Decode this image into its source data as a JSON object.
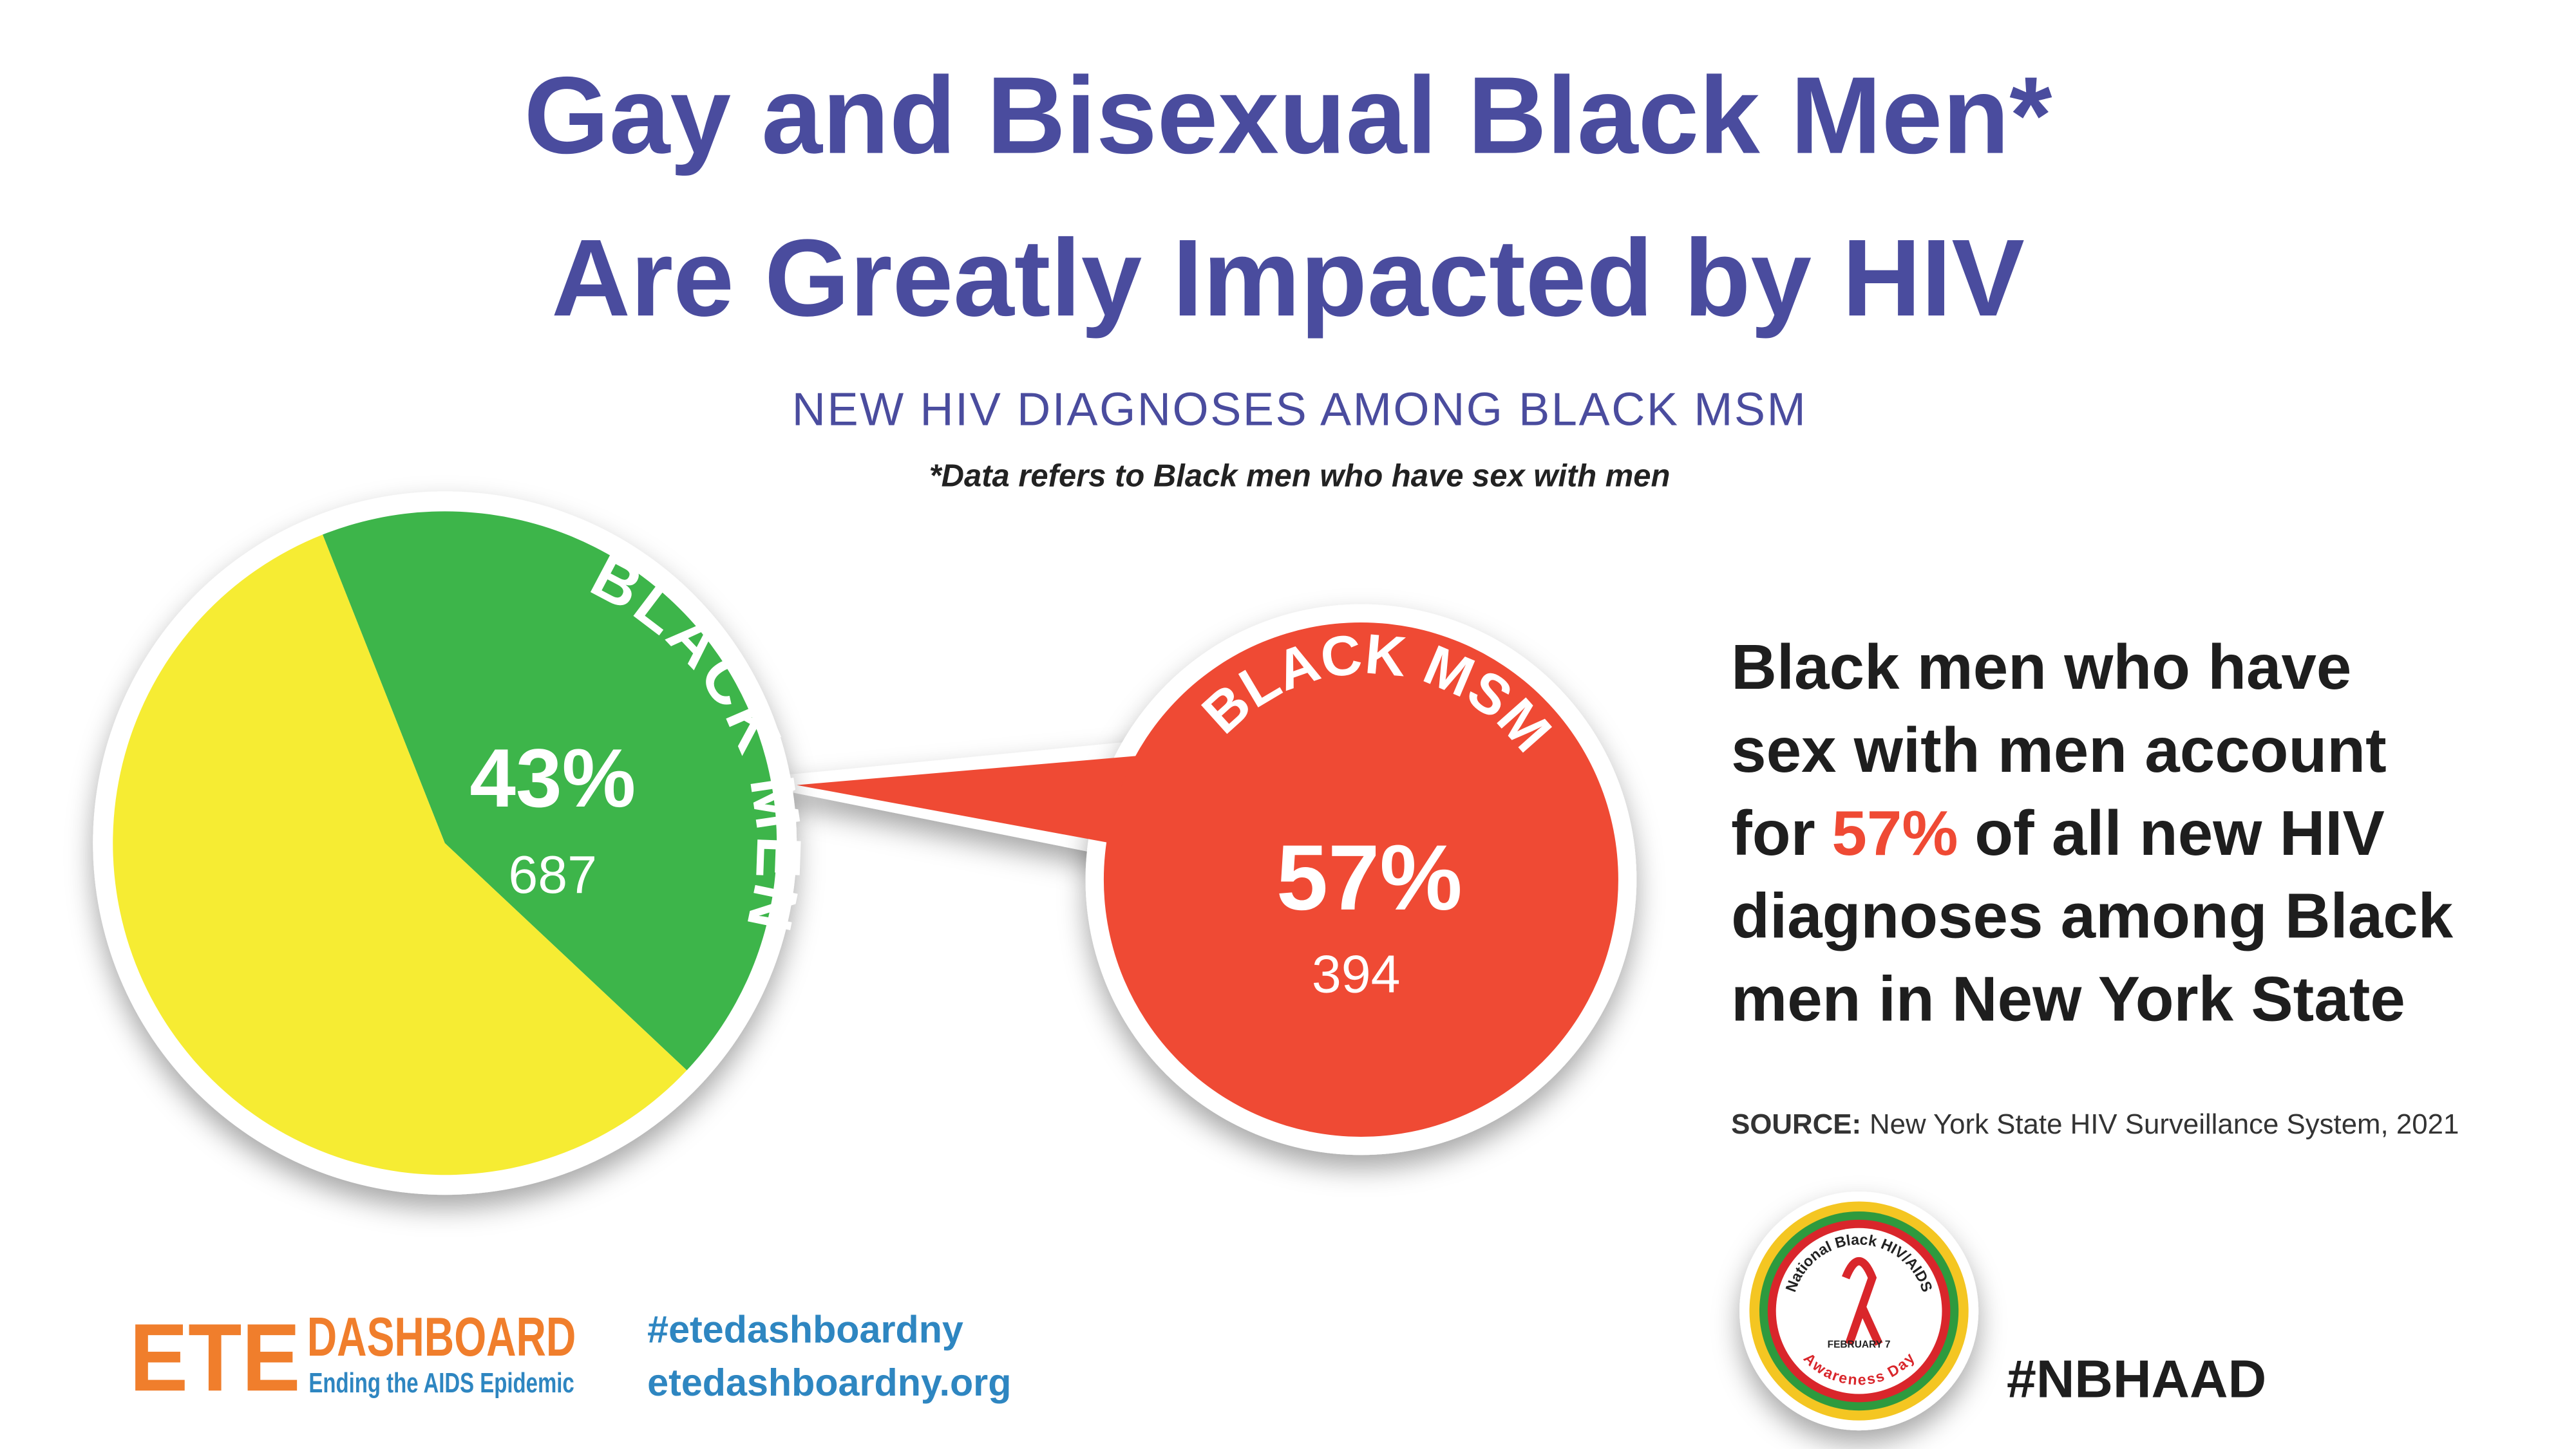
{
  "chart_data": {
    "type": "pie",
    "title": [
      "Gay and Bisexual Black Men*",
      "Are Greatly Impacted by HIV"
    ],
    "subtitle": "NEW HIV DIAGNOSES AMONG BLACK MSM",
    "note": "*Data refers to Black men who have sex with men",
    "categories": [
      "BLACK MEN",
      null
    ],
    "values": [
      43,
      57
    ],
    "value_labels": [
      "43%",
      null
    ],
    "counts": [
      687,
      null
    ],
    "colors": [
      "#3db54a",
      "#f6ec33"
    ]
  },
  "callout": {
    "label": "BLACK MSM",
    "value_label": "57%",
    "count": 394,
    "color": "#ef4a34"
  },
  "statement": [
    [
      "Black men who have"
    ],
    [
      "sex with men account"
    ],
    [
      "for",
      {
        "text": "57%",
        "color": "#ef4a34"
      },
      "of all new HIV"
    ],
    [
      "diagnoses among Black"
    ],
    [
      "men in New York State"
    ]
  ],
  "source": {
    "label": "SOURCE:",
    "text": "New York State HIV Surveillance System, 2021"
  },
  "footer": {
    "logo_ete": "ETE",
    "logo_dashboard": "DASHBOARD",
    "logo_tagline": "Ending the AIDS Epidemic",
    "hashtag": "#etedashboardny",
    "website": "etedashboardny.org",
    "badge_top": "National Black HIV/AIDS",
    "badge_date": "FEBRUARY 7",
    "badge_bottom": "Awareness Day",
    "nbhaad": "#NBHAAD"
  }
}
